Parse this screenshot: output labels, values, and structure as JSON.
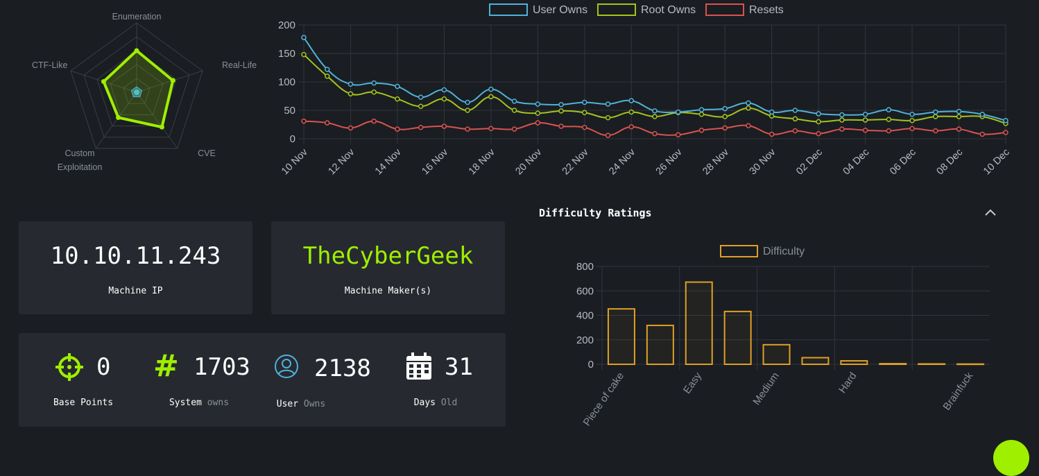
{
  "radar": {
    "axes": [
      "Enumeration",
      "Real-Life",
      "CVE",
      "Custom Exploitation",
      "CTF-Like"
    ],
    "axis_label_lines": [
      [
        "Enumeration"
      ],
      [
        "Real-Life"
      ],
      [
        "CVE"
      ],
      [
        "Custom",
        "Exploitation"
      ],
      [
        "CTF-Like"
      ]
    ],
    "values": [
      0.6,
      0.55,
      0.62,
      0.45,
      0.5
    ],
    "user_values": [
      0.08,
      0.08,
      0.08,
      0.08,
      0.08
    ],
    "color": "#9fef00"
  },
  "chart_data": [
    {
      "type": "line",
      "title": "",
      "x": [
        "10 Nov",
        "11 Nov",
        "12 Nov",
        "13 Nov",
        "14 Nov",
        "15 Nov",
        "16 Nov",
        "17 Nov",
        "18 Nov",
        "19 Nov",
        "20 Nov",
        "21 Nov",
        "22 Nov",
        "23 Nov",
        "24 Nov",
        "25 Nov",
        "26 Nov",
        "27 Nov",
        "28 Nov",
        "29 Nov",
        "30 Nov",
        "01 Dec",
        "02 Dec",
        "03 Dec",
        "04 Dec",
        "05 Dec",
        "06 Dec",
        "07 Dec",
        "08 Dec",
        "09 Dec",
        "10 Dec"
      ],
      "tick_labels": [
        "10 Nov",
        "12 Nov",
        "14 Nov",
        "16 Nov",
        "18 Nov",
        "20 Nov",
        "22 Nov",
        "24 Nov",
        "26 Nov",
        "28 Nov",
        "30 Nov",
        "02 Dec",
        "04 Dec",
        "06 Dec",
        "08 Dec",
        "10 Dec"
      ],
      "y_ticks": [
        "200",
        "150",
        "100",
        "50",
        "0"
      ],
      "ylim": [
        0,
        200
      ],
      "legend_placement": "top",
      "series": [
        {
          "name": "User Owns",
          "color": "#4fb3d9",
          "values": [
            178,
            122,
            96,
            98,
            92,
            73,
            86,
            64,
            87,
            66,
            61,
            60,
            64,
            61,
            67,
            49,
            47,
            51,
            53,
            63,
            47,
            50,
            44,
            42,
            43,
            51,
            43,
            47,
            48,
            43,
            32
          ]
        },
        {
          "name": "Root Owns",
          "color": "#a4c41c",
          "values": [
            148,
            110,
            79,
            82,
            70,
            57,
            70,
            50,
            74,
            50,
            45,
            49,
            46,
            37,
            47,
            39,
            46,
            43,
            39,
            54,
            40,
            35,
            30,
            33,
            33,
            34,
            32,
            39,
            39,
            39,
            27
          ]
        },
        {
          "name": "Resets",
          "color": "#d9534f",
          "values": [
            31,
            28,
            19,
            31,
            17,
            20,
            22,
            17,
            18,
            17,
            28,
            22,
            20,
            6,
            21,
            9,
            7,
            15,
            19,
            23,
            8,
            14,
            9,
            17,
            15,
            14,
            18,
            14,
            17,
            8,
            11
          ]
        }
      ]
    },
    {
      "type": "bar",
      "title": "",
      "categories": [
        "Piece of cake",
        "",
        "Easy",
        "",
        "Medium",
        "",
        "Hard",
        "",
        "",
        "Brainfuck"
      ],
      "tick_labels": [
        "Piece of cake",
        "Easy",
        "Medium",
        "Hard",
        "Brainfuck"
      ],
      "y_ticks": [
        "800",
        "600",
        "400",
        "200",
        "0"
      ],
      "values": [
        453,
        318,
        672,
        432,
        160,
        54,
        28,
        5,
        3,
        2
      ],
      "ylim": [
        0,
        800
      ],
      "legend_placement": "top",
      "series": [
        {
          "name": "Difficulty",
          "color": "#e0a025"
        }
      ]
    }
  ],
  "difficulty": {
    "title": "Difficulty Ratings",
    "collapse_icon": "chevron-up-icon"
  },
  "machine": {
    "ip": "10.10.11.243",
    "ip_label": "Machine IP",
    "maker": "TheCyberGeek",
    "maker_label": "Machine Maker(s)",
    "maker_color": "#9fef00"
  },
  "stats": {
    "base_points": {
      "value": "0",
      "label": "Base Points",
      "icon": "crosshair-icon"
    },
    "system": {
      "value": "1703",
      "label": "System",
      "sub": "owns",
      "icon": "hash-icon"
    },
    "user": {
      "value": "2138",
      "label": "User",
      "sub": "Owns",
      "icon": "user-icon"
    },
    "days": {
      "value": "31",
      "label": "Days",
      "sub": "Old",
      "icon": "calendar-icon"
    }
  }
}
